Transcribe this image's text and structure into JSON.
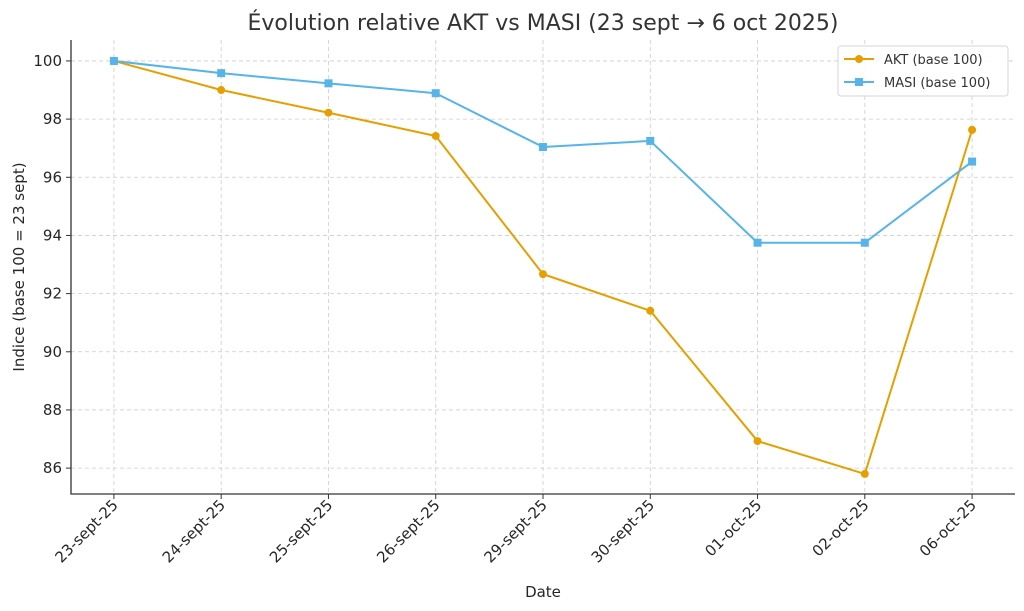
{
  "chart_data": {
    "type": "line",
    "title": "Évolution relative AKT vs MASI (23 sept → 6 oct 2025)",
    "xlabel": "Date",
    "ylabel": "Indice (base 100 = 23 sept)",
    "categories": [
      "23-sept-25",
      "24-sept-25",
      "25-sept-25",
      "26-sept-25",
      "29-sept-25",
      "30-sept-25",
      "01-oct-25",
      "02-oct-25",
      "06-oct-25"
    ],
    "yticks": [
      86,
      88,
      90,
      92,
      94,
      96,
      98,
      100
    ],
    "ylim": [
      85.11,
      100.72
    ],
    "xlim": [
      -0.4,
      8.4
    ],
    "grid": true,
    "legend_position": "top-right",
    "series": [
      {
        "name": "AKT (base 100)",
        "color": "#E69F00",
        "marker": "circle",
        "values": [
          100.0,
          99.0,
          98.22,
          97.42,
          92.67,
          91.41,
          86.93,
          85.8,
          97.63
        ]
      },
      {
        "name": "MASI (base 100)",
        "color": "#56B4E9",
        "marker": "square",
        "values": [
          100.0,
          99.58,
          99.23,
          98.89,
          97.04,
          97.25,
          93.75,
          93.75,
          96.54
        ]
      }
    ]
  }
}
